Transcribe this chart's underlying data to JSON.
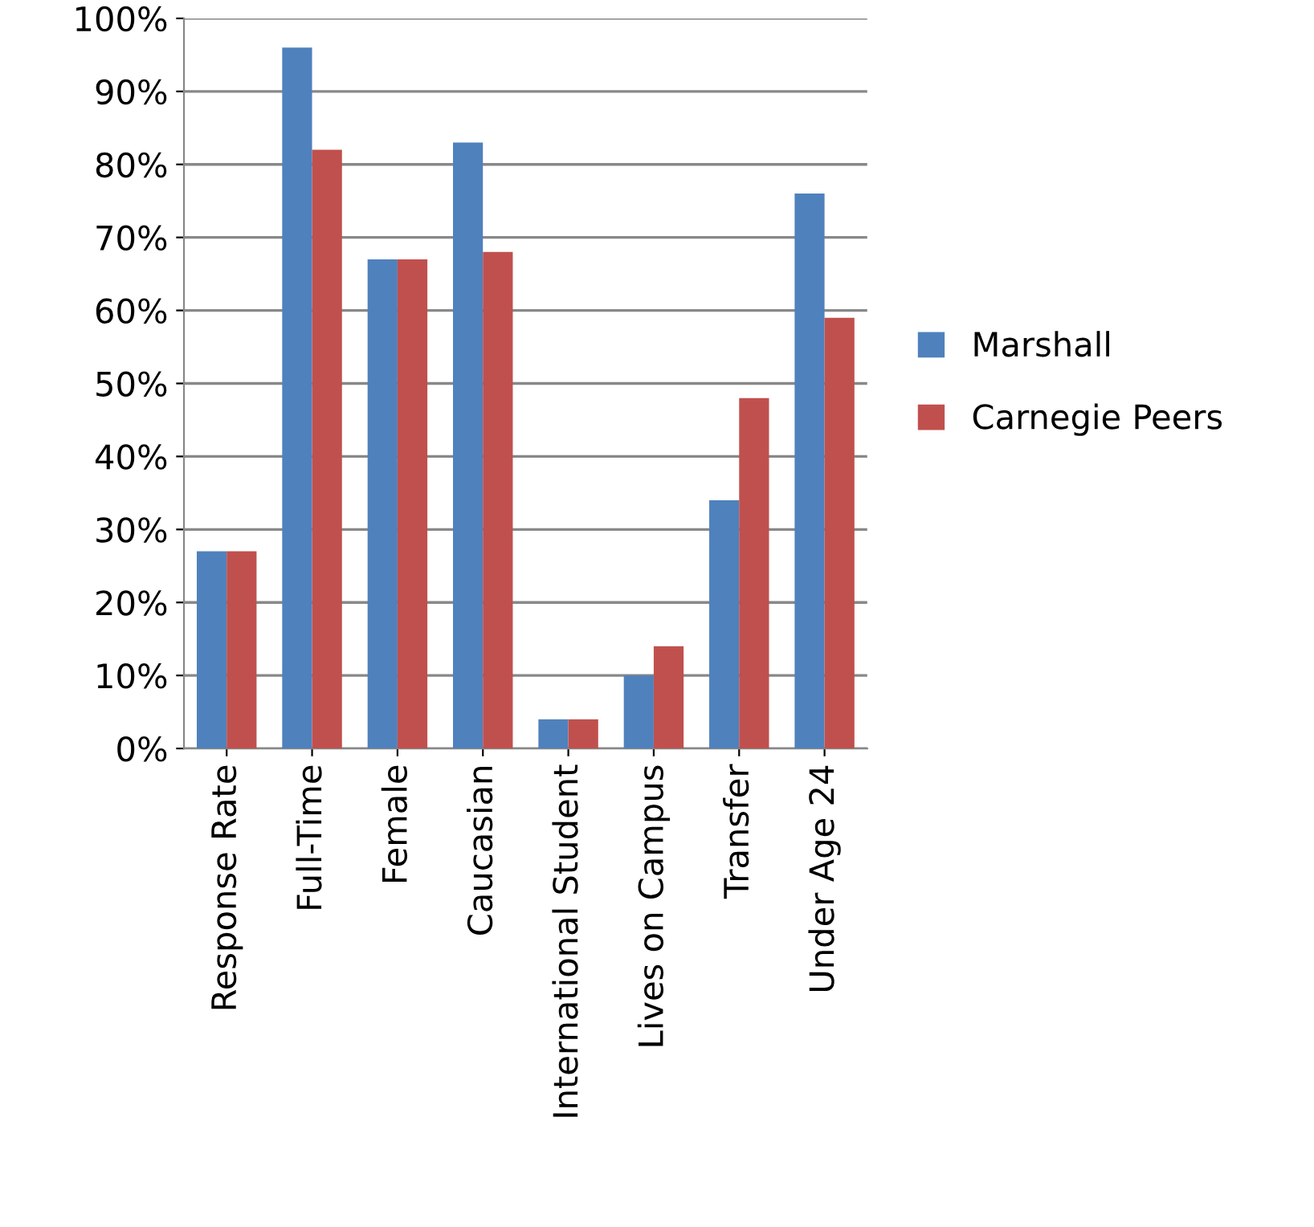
{
  "chart_data": {
    "type": "bar",
    "categories": [
      "Response Rate",
      "Full-Time",
      "Female",
      "Caucasian",
      "International Student",
      "Lives on Campus",
      "Transfer",
      "Under Age 24"
    ],
    "series": [
      {
        "name": "Marshall",
        "color": "#4f81bd",
        "values": [
          27,
          96,
          67,
          83,
          4,
          10,
          34,
          76
        ]
      },
      {
        "name": "Carnegie Peers",
        "color": "#c0504d",
        "values": [
          27,
          82,
          67,
          68,
          4,
          14,
          48,
          59
        ]
      }
    ],
    "ylim": [
      0,
      100
    ],
    "yticks": [
      {
        "value": 0,
        "label": "0%"
      },
      {
        "value": 10,
        "label": "10%"
      },
      {
        "value": 20,
        "label": "20%"
      },
      {
        "value": 30,
        "label": "30%"
      },
      {
        "value": 40,
        "label": "40%"
      },
      {
        "value": 50,
        "label": "50%"
      },
      {
        "value": 60,
        "label": "60%"
      },
      {
        "value": 70,
        "label": "70%"
      },
      {
        "value": 80,
        "label": "80%"
      },
      {
        "value": 90,
        "label": "90%"
      },
      {
        "value": 100,
        "label": "100%"
      }
    ],
    "grid": "y",
    "legend": "right"
  }
}
